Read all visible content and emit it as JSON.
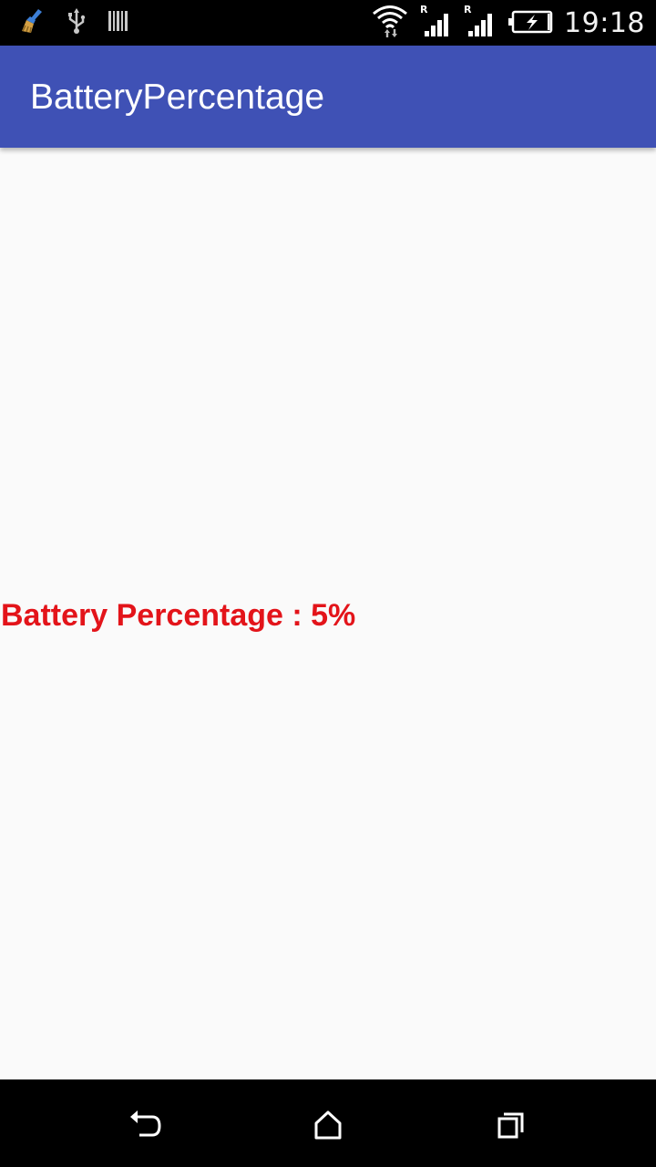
{
  "status_bar": {
    "time": "19:18",
    "left_icons": [
      "broom-icon",
      "usb-icon",
      "barcode-icon"
    ],
    "right_icons": [
      "wifi-icon",
      "signal-icon",
      "signal-icon",
      "battery-charging-icon"
    ],
    "roaming_label": "R"
  },
  "app_bar": {
    "title": "BatteryPercentage",
    "color": "#3f51b5"
  },
  "content": {
    "battery_text": "Battery Percentage : 5%",
    "text_color": "#e3141a",
    "battery_level_percent": 5
  },
  "nav_bar": {
    "buttons": [
      "back-icon",
      "home-icon",
      "recents-icon"
    ]
  }
}
